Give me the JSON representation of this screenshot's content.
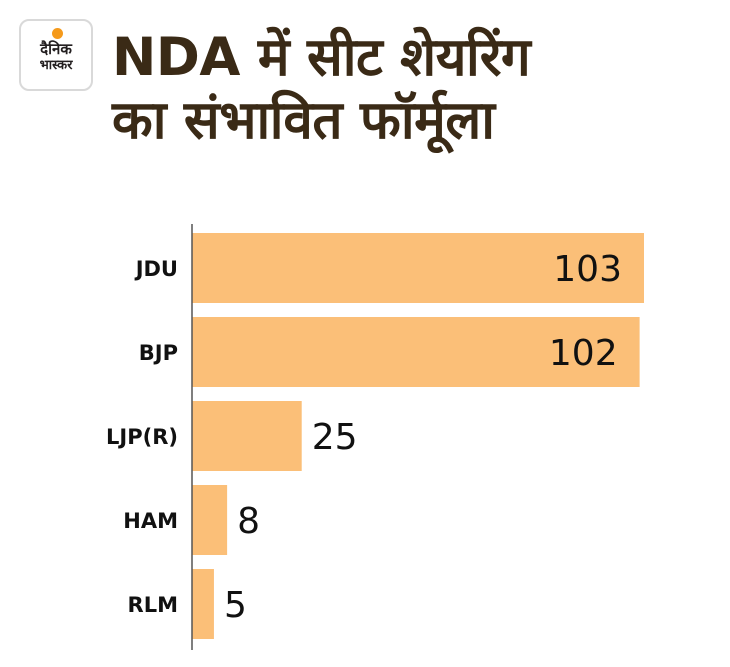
{
  "logo": {
    "line1": "दैनिक",
    "line2": "भास्कर"
  },
  "colors": {
    "bar": "#fbbf78",
    "axis": "#555555",
    "title": "#3a2a16",
    "logo_sun": "#f59a1b"
  },
  "chart_data": {
    "type": "bar",
    "orientation": "horizontal",
    "title_lines": [
      "NDA में सीट शेयरिंग",
      "का संभावित फॉर्मूला"
    ],
    "categories": [
      "JDU",
      "BJP",
      "LJP(R)",
      "HAM",
      "RLM"
    ],
    "values": [
      103,
      102,
      25,
      8,
      5
    ],
    "value_labels": [
      "103",
      "102",
      "25",
      "8",
      "5"
    ],
    "xlim": [
      0,
      103
    ],
    "xlabel": "",
    "ylabel": ""
  }
}
